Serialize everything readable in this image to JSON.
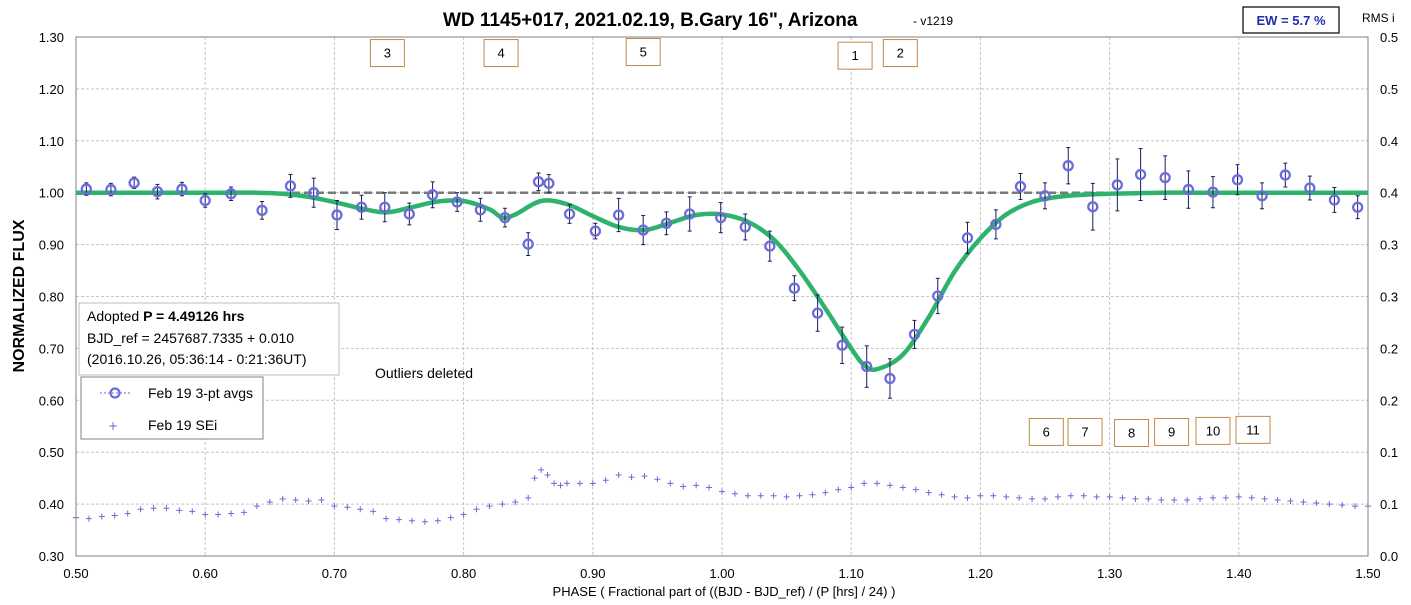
{
  "chart_data": {
    "type": "scatter",
    "title": "WD 1145+017, 2021.02.19, B.Gary 16\", Arizona",
    "title_suffix": "- v1219",
    "xlabel": "PHASE ( Fractional part of ((BJD - BJD_ref) / (P [hrs] / 24) )",
    "ylabel": "NORMALIZED FLUX",
    "y2label": "RMS i",
    "xlim": [
      0.5,
      1.5
    ],
    "ylim": [
      0.3,
      1.3
    ],
    "y2lim": [
      0.0,
      0.5
    ],
    "x_ticks": [
      "0.50",
      "0.60",
      "0.70",
      "0.80",
      "0.90",
      "1.00",
      "1.10",
      "1.20",
      "1.30",
      "1.40",
      "1.50"
    ],
    "y_ticks": [
      "0.30",
      "0.40",
      "0.50",
      "0.60",
      "0.70",
      "0.80",
      "0.90",
      "1.00",
      "1.10",
      "1.20",
      "1.30"
    ],
    "y2_ticks": [
      "0.0",
      "0.1",
      "0.1",
      "0.2",
      "0.2",
      "0.3",
      "0.3",
      "0.4",
      "0.4",
      "0.5",
      "0.5"
    ],
    "grid": true,
    "ew_label": "EW = 5.7 %",
    "info": {
      "line1_prefix": "Adopted ",
      "line1_bold": "P = 4.49126 hrs",
      "line2": "BJD_ref = 2457687.7335 + 0.010",
      "line3": "(2016.10.26, 05:36:14 - 0:21:36UT)"
    },
    "annotation": "Outliers deleted",
    "legend": {
      "placement": "left",
      "items": [
        "Feb 19 3-pt avgs",
        "Feb 19 SEi"
      ]
    },
    "dip_labels": [
      {
        "label": "1",
        "x": 1.103,
        "y": 1.265
      },
      {
        "label": "2",
        "x": 1.138,
        "y": 1.27
      },
      {
        "label": "3",
        "x": 0.741,
        "y": 1.27
      },
      {
        "label": "4",
        "x": 0.829,
        "y": 1.27
      },
      {
        "label": "5",
        "x": 0.939,
        "y": 1.272
      },
      {
        "label": "6",
        "x": 1.251,
        "y": 0.54
      },
      {
        "label": "7",
        "x": 1.281,
        "y": 0.54
      },
      {
        "label": "8",
        "x": 1.317,
        "y": 0.538
      },
      {
        "label": "9",
        "x": 1.348,
        "y": 0.54
      },
      {
        "label": "10",
        "x": 1.38,
        "y": 0.542
      },
      {
        "label": "11",
        "x": 1.411,
        "y": 0.544
      }
    ],
    "reference_line": 1.0,
    "series": [
      {
        "name": "Feb 19 3-pt avgs",
        "color": "#6b6bdc",
        "x": [
          0.508,
          0.527,
          0.545,
          0.563,
          0.582,
          0.6,
          0.62,
          0.644,
          0.666,
          0.684,
          0.702,
          0.721,
          0.739,
          0.758,
          0.776,
          0.795,
          0.813,
          0.832,
          0.85,
          0.858,
          0.866,
          0.882,
          0.902,
          0.92,
          0.939,
          0.957,
          0.975,
          0.999,
          1.018,
          1.037,
          1.056,
          1.074,
          1.093,
          1.112,
          1.13,
          1.149,
          1.167,
          1.19,
          1.212,
          1.231,
          1.25,
          1.268,
          1.287,
          1.306,
          1.324,
          1.343,
          1.361,
          1.38,
          1.399,
          1.418,
          1.436,
          1.455,
          1.474,
          1.492
        ],
        "y": [
          1.007,
          1.006,
          1.019,
          1.002,
          1.007,
          0.985,
          0.998,
          0.966,
          1.013,
          1.0,
          0.957,
          0.972,
          0.972,
          0.959,
          0.996,
          0.982,
          0.967,
          0.952,
          0.901,
          1.021,
          1.018,
          0.959,
          0.926,
          0.957,
          0.928,
          0.941,
          0.959,
          0.952,
          0.934,
          0.897,
          0.816,
          0.768,
          0.706,
          0.665,
          0.642,
          0.727,
          0.801,
          0.913,
          0.939,
          1.012,
          0.994,
          1.052,
          0.973,
          1.015,
          1.035,
          1.029,
          1.006,
          1.001,
          1.025,
          0.994,
          1.034,
          1.009,
          0.986,
          0.972
        ],
        "yerr": [
          0.012,
          0.012,
          0.011,
          0.014,
          0.013,
          0.013,
          0.013,
          0.017,
          0.022,
          0.028,
          0.028,
          0.023,
          0.028,
          0.021,
          0.025,
          0.018,
          0.022,
          0.018,
          0.022,
          0.017,
          0.017,
          0.018,
          0.015,
          0.032,
          0.028,
          0.022,
          0.033,
          0.029,
          0.025,
          0.029,
          0.024,
          0.035,
          0.035,
          0.04,
          0.038,
          0.027,
          0.034,
          0.03,
          0.028,
          0.025,
          0.025,
          0.035,
          0.045,
          0.05,
          0.05,
          0.042,
          0.036,
          0.03,
          0.029,
          0.025,
          0.023,
          0.023,
          0.024,
          0.022
        ]
      },
      {
        "name": "Feb 19 SEi",
        "color": "#6b6bdc",
        "axis": "right",
        "x": [
          0.5,
          0.51,
          0.52,
          0.53,
          0.54,
          0.55,
          0.56,
          0.57,
          0.58,
          0.59,
          0.6,
          0.61,
          0.62,
          0.63,
          0.64,
          0.65,
          0.66,
          0.67,
          0.68,
          0.69,
          0.7,
          0.71,
          0.72,
          0.73,
          0.74,
          0.75,
          0.76,
          0.77,
          0.78,
          0.79,
          0.8,
          0.81,
          0.82,
          0.83,
          0.84,
          0.85,
          0.855,
          0.86,
          0.865,
          0.87,
          0.875,
          0.88,
          0.89,
          0.9,
          0.91,
          0.92,
          0.93,
          0.94,
          0.95,
          0.96,
          0.97,
          0.98,
          0.99,
          1.0,
          1.01,
          1.02,
          1.03,
          1.04,
          1.05,
          1.06,
          1.07,
          1.08,
          1.09,
          1.1,
          1.11,
          1.12,
          1.13,
          1.14,
          1.15,
          1.16,
          1.17,
          1.18,
          1.19,
          1.2,
          1.21,
          1.22,
          1.23,
          1.24,
          1.25,
          1.26,
          1.27,
          1.28,
          1.29,
          1.3,
          1.31,
          1.32,
          1.33,
          1.34,
          1.35,
          1.36,
          1.37,
          1.38,
          1.39,
          1.4,
          1.41,
          1.42,
          1.43,
          1.44,
          1.45,
          1.46,
          1.47,
          1.48,
          1.49,
          1.5
        ],
        "y": [
          0.037,
          0.036,
          0.038,
          0.039,
          0.041,
          0.045,
          0.046,
          0.046,
          0.044,
          0.043,
          0.04,
          0.04,
          0.041,
          0.042,
          0.048,
          0.052,
          0.055,
          0.054,
          0.053,
          0.054,
          0.048,
          0.047,
          0.045,
          0.043,
          0.036,
          0.035,
          0.034,
          0.033,
          0.034,
          0.037,
          0.04,
          0.045,
          0.048,
          0.05,
          0.052,
          0.056,
          0.075,
          0.083,
          0.078,
          0.07,
          0.068,
          0.07,
          0.07,
          0.07,
          0.073,
          0.078,
          0.076,
          0.077,
          0.074,
          0.07,
          0.067,
          0.068,
          0.066,
          0.062,
          0.06,
          0.058,
          0.058,
          0.058,
          0.057,
          0.058,
          0.059,
          0.061,
          0.064,
          0.066,
          0.07,
          0.07,
          0.068,
          0.066,
          0.064,
          0.061,
          0.059,
          0.057,
          0.056,
          0.058,
          0.058,
          0.057,
          0.056,
          0.055,
          0.055,
          0.057,
          0.058,
          0.058,
          0.057,
          0.057,
          0.056,
          0.055,
          0.055,
          0.054,
          0.054,
          0.054,
          0.055,
          0.056,
          0.056,
          0.057,
          0.056,
          0.055,
          0.054,
          0.053,
          0.052,
          0.051,
          0.05,
          0.049,
          0.048,
          0.048
        ]
      },
      {
        "name": "model",
        "color": "#2db36b",
        "x": [
          0.5,
          0.52,
          0.54,
          0.56,
          0.58,
          0.6,
          0.62,
          0.64,
          0.66,
          0.68,
          0.7,
          0.72,
          0.74,
          0.76,
          0.78,
          0.8,
          0.82,
          0.83,
          0.84,
          0.86,
          0.88,
          0.9,
          0.92,
          0.94,
          0.96,
          0.98,
          1.0,
          1.02,
          1.04,
          1.06,
          1.08,
          1.1,
          1.11,
          1.12,
          1.14,
          1.16,
          1.18,
          1.2,
          1.22,
          1.24,
          1.26,
          1.28,
          1.3,
          1.32,
          1.34,
          1.36,
          1.38,
          1.4,
          1.42,
          1.44,
          1.46,
          1.48,
          1.5
        ],
        "y": [
          1.0,
          1.0,
          1.0,
          1.0,
          1.0,
          1.0,
          1.0,
          1.0,
          0.998,
          0.992,
          0.982,
          0.97,
          0.962,
          0.972,
          0.983,
          0.984,
          0.968,
          0.952,
          0.958,
          0.984,
          0.978,
          0.955,
          0.934,
          0.928,
          0.942,
          0.957,
          0.958,
          0.944,
          0.91,
          0.85,
          0.777,
          0.7,
          0.668,
          0.66,
          0.688,
          0.76,
          0.848,
          0.912,
          0.958,
          0.982,
          0.992,
          0.996,
          0.998,
          0.999,
          1.0,
          1.0,
          1.0,
          1.0,
          1.0,
          1.0,
          1.0,
          1.0,
          1.0
        ]
      }
    ]
  }
}
